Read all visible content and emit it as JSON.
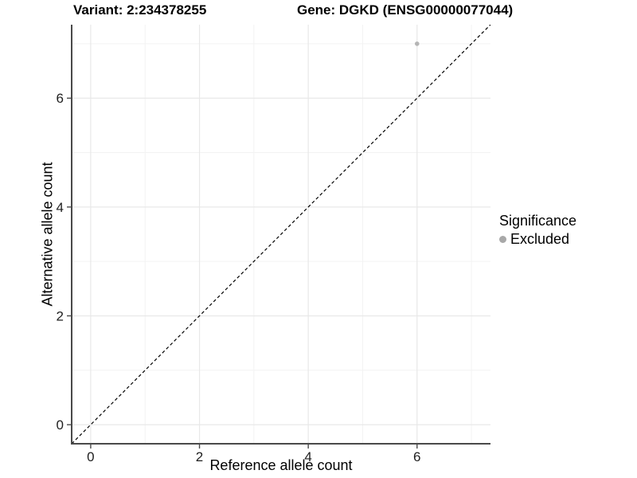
{
  "header": {
    "variant_label": "Variant: 2:234378255",
    "gene_label": "Gene: DGKD (ENSG00000077044)"
  },
  "chart_data": {
    "type": "scatter",
    "xlabel": "Reference allele count",
    "ylabel": "Alternative allele count",
    "xlim": [
      -0.35,
      7.35
    ],
    "ylim": [
      -0.35,
      7.35
    ],
    "xticks": [
      0,
      2,
      4,
      6
    ],
    "yticks": [
      0,
      2,
      4,
      6
    ],
    "x_minor_ticks": [
      1,
      3,
      5,
      7
    ],
    "y_minor_ticks": [
      1,
      3,
      5,
      7
    ],
    "grid": true,
    "reference_line": {
      "kind": "identity",
      "slope": 1,
      "intercept": 0,
      "style": "dashed",
      "color": "#000000"
    },
    "series": [
      {
        "name": "Excluded",
        "color": "#b5b5b5",
        "points": [
          {
            "x": 6,
            "y": 7
          }
        ]
      }
    ],
    "legend": {
      "title": "Significance",
      "position": "right",
      "entries": [
        {
          "label": "Excluded",
          "color": "#a8a8a8"
        }
      ]
    },
    "colors": {
      "grid_major": "#e8e8e8",
      "grid_minor": "#f3f3f3",
      "axis_line": "#4a4a4a",
      "tick_text": "#1f1f1f"
    }
  }
}
